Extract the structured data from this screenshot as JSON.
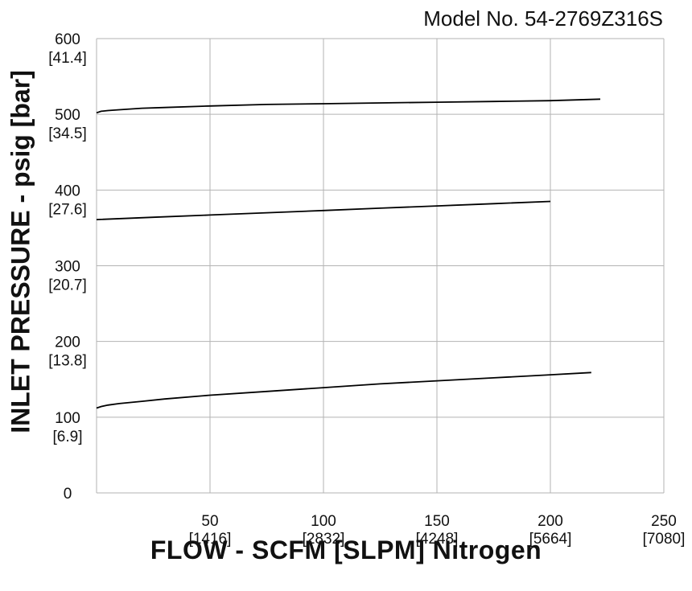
{
  "model_label": "Model No. 54-2769Z316S",
  "chart_data": {
    "type": "line",
    "xlabel": "FLOW - SCFM [SLPM] Nitrogen",
    "ylabel": "INLET PRESSURE - psig [bar]",
    "xlim": [
      0,
      250
    ],
    "ylim": [
      0,
      600
    ],
    "grid": true,
    "x_ticks": [
      {
        "value": 50,
        "label": "50",
        "sub": "[1416]"
      },
      {
        "value": 100,
        "label": "100",
        "sub": "[2832]"
      },
      {
        "value": 150,
        "label": "150",
        "sub": "[4248]"
      },
      {
        "value": 200,
        "label": "200",
        "sub": "[5664]"
      },
      {
        "value": 250,
        "label": "250",
        "sub": "[7080]"
      }
    ],
    "y_ticks": [
      {
        "value": 0,
        "label": "0",
        "sub": ""
      },
      {
        "value": 100,
        "label": "100",
        "sub": "[6.9]"
      },
      {
        "value": 200,
        "label": "200",
        "sub": "[13.8]"
      },
      {
        "value": 300,
        "label": "300",
        "sub": "[20.7]"
      },
      {
        "value": 400,
        "label": "400",
        "sub": "[27.6]"
      },
      {
        "value": 500,
        "label": "500",
        "sub": "[34.5]"
      },
      {
        "value": 600,
        "label": "600",
        "sub": "[41.4]"
      }
    ],
    "series": [
      {
        "x": [
          0,
          2,
          5,
          10,
          20,
          30,
          50,
          75,
          100,
          125,
          150,
          175,
          200,
          222
        ],
        "y": [
          502,
          504,
          505,
          506,
          508,
          509,
          511,
          513,
          514,
          515,
          516,
          517,
          518,
          520
        ]
      },
      {
        "x": [
          0,
          25,
          50,
          75,
          100,
          125,
          150,
          175,
          200
        ],
        "y": [
          361,
          364,
          367,
          370,
          373,
          376,
          379,
          382,
          385
        ]
      },
      {
        "x": [
          0,
          2,
          5,
          10,
          20,
          30,
          50,
          75,
          100,
          125,
          150,
          175,
          200,
          218
        ],
        "y": [
          112,
          114,
          116,
          118,
          121,
          124,
          129,
          134,
          139,
          144,
          148,
          152,
          156,
          159
        ]
      }
    ],
    "line_color": "#000000",
    "grid_color": "#b3b3b3"
  }
}
